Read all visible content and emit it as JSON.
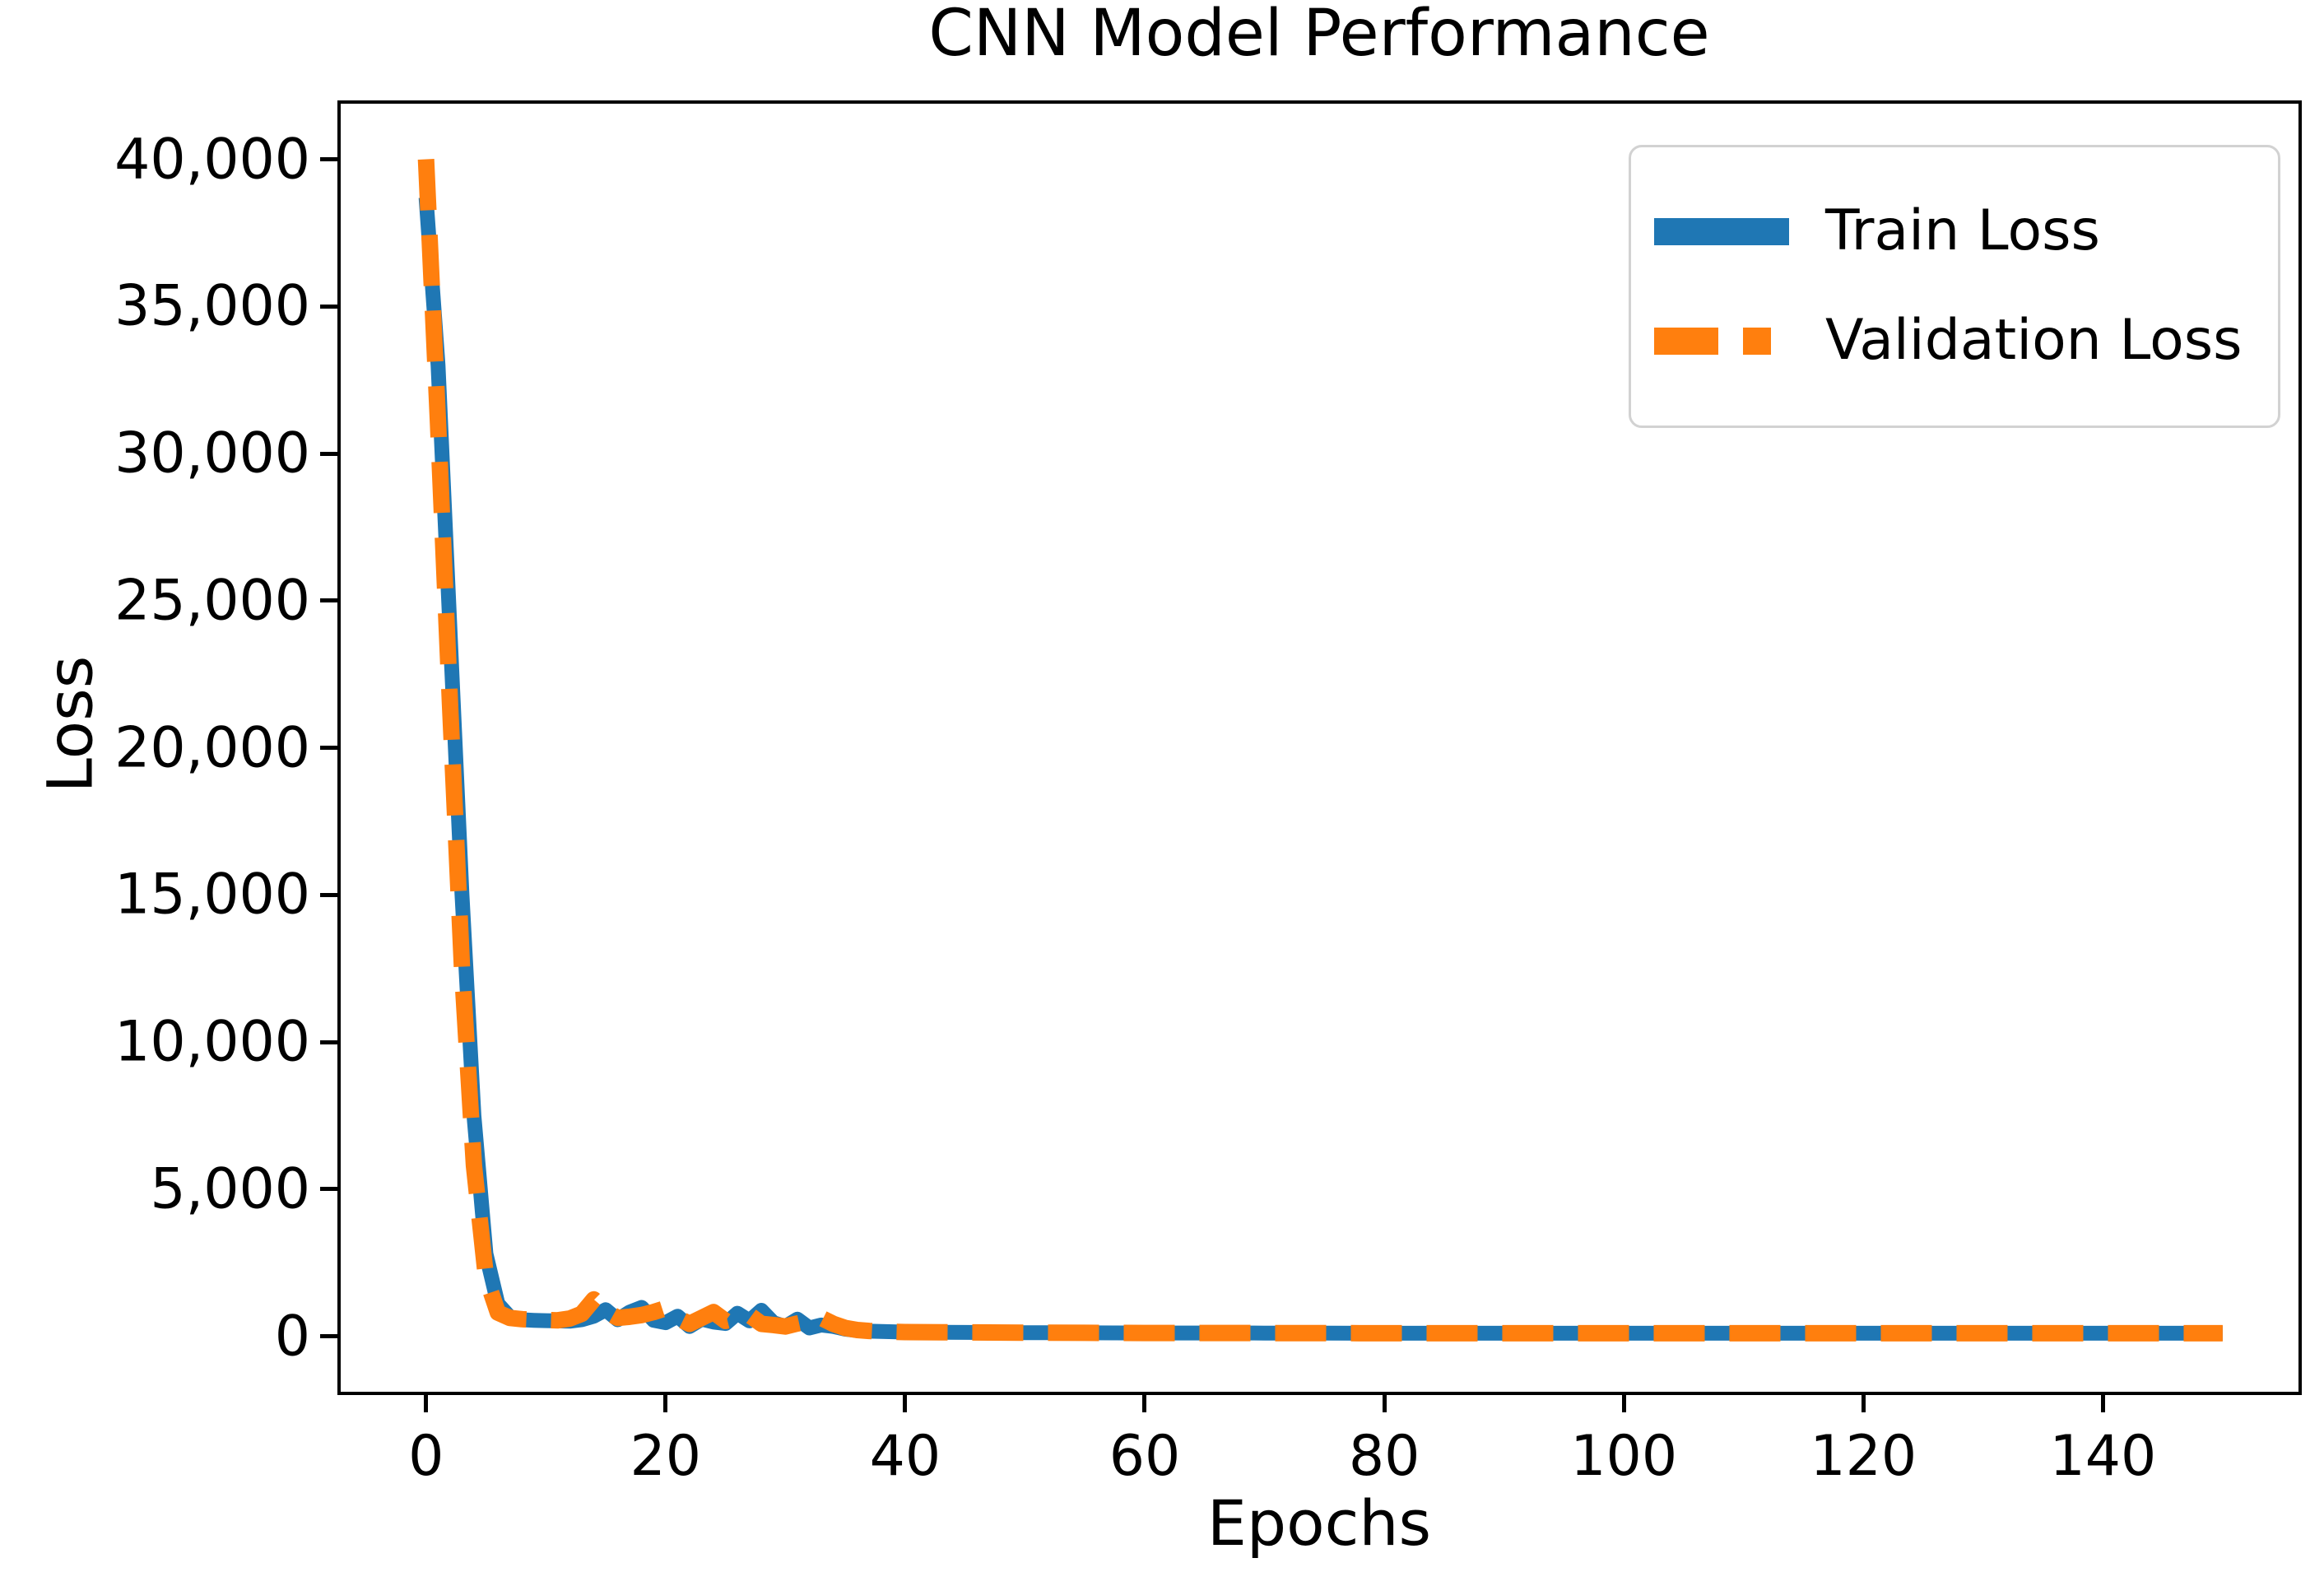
{
  "chart_data": {
    "type": "line",
    "title": "CNN Model Performance",
    "xlabel": "Epochs",
    "ylabel": "Loss",
    "xlim": [
      -7.4,
      156.6
    ],
    "ylim": [
      -2000,
      42000
    ],
    "x_ticks": [
      0,
      20,
      40,
      60,
      80,
      100,
      120,
      140
    ],
    "x_tick_labels": [
      "0",
      "20",
      "40",
      "60",
      "80",
      "100",
      "120",
      "140"
    ],
    "y_ticks": [
      0,
      5000,
      10000,
      15000,
      20000,
      25000,
      30000,
      35000,
      40000
    ],
    "y_tick_labels": [
      "0",
      "5,000",
      "10,000",
      "15,000",
      "20,000",
      "25,000",
      "30,000",
      "35,000",
      "40,000"
    ],
    "grid": false,
    "legend_position": "upper right",
    "series": [
      {
        "name": "Train Loss",
        "color": "#1f77b4",
        "line_style": "solid",
        "line_width": 18,
        "x": [
          0,
          1,
          2,
          3,
          4,
          5,
          6,
          7,
          8,
          9,
          10,
          11,
          12,
          13,
          14,
          15,
          16,
          17,
          18,
          19,
          20,
          21,
          22,
          23,
          24,
          25,
          26,
          27,
          28,
          29,
          30,
          31,
          32,
          33,
          34,
          35,
          36,
          37,
          38,
          39,
          40,
          45,
          50,
          55,
          60,
          65,
          70,
          75,
          80,
          85,
          90,
          95,
          100,
          105,
          110,
          115,
          120,
          125,
          130,
          135,
          140,
          145,
          150
        ],
        "y": [
          38700,
          33000,
          24000,
          15000,
          7500,
          2800,
          1100,
          650,
          560,
          540,
          530,
          520,
          510,
          560,
          680,
          900,
          560,
          820,
          980,
          540,
          460,
          680,
          330,
          580,
          480,
          430,
          780,
          520,
          880,
          460,
          330,
          580,
          280,
          380,
          330,
          240,
          190,
          170,
          160,
          150,
          140,
          130,
          120,
          115,
          110,
          110,
          105,
          105,
          100,
          100,
          100,
          100,
          100,
          100,
          100,
          100,
          100,
          100,
          100,
          100,
          100,
          100,
          100
        ]
      },
      {
        "name": "Validation Loss",
        "color": "#ff7f0e",
        "line_style": "dashed",
        "line_width": 20,
        "x": [
          0,
          1,
          2,
          3,
          4,
          5,
          6,
          7,
          8,
          9,
          10,
          11,
          12,
          13,
          14,
          15,
          16,
          17,
          18,
          19,
          20,
          21,
          22,
          23,
          24,
          25,
          26,
          27,
          28,
          29,
          30,
          31,
          32,
          33,
          34,
          35,
          36,
          37,
          38,
          39,
          40,
          45,
          50,
          55,
          60,
          65,
          70,
          75,
          80,
          85,
          90,
          95,
          100,
          105,
          110,
          115,
          120,
          125,
          130,
          135,
          140,
          145,
          150
        ],
        "y": [
          40000,
          31000,
          21500,
          12500,
          5800,
          2000,
          800,
          620,
          580,
          560,
          550,
          540,
          600,
          760,
          1250,
          850,
          620,
          660,
          720,
          820,
          950,
          620,
          420,
          620,
          820,
          520,
          620,
          720,
          420,
          380,
          330,
          430,
          520,
          620,
          420,
          280,
          210,
          180,
          160,
          150,
          140,
          130,
          120,
          115,
          110,
          110,
          105,
          105,
          100,
          100,
          100,
          100,
          100,
          100,
          100,
          100,
          100,
          100,
          100,
          100,
          100,
          100,
          100
        ]
      }
    ]
  }
}
